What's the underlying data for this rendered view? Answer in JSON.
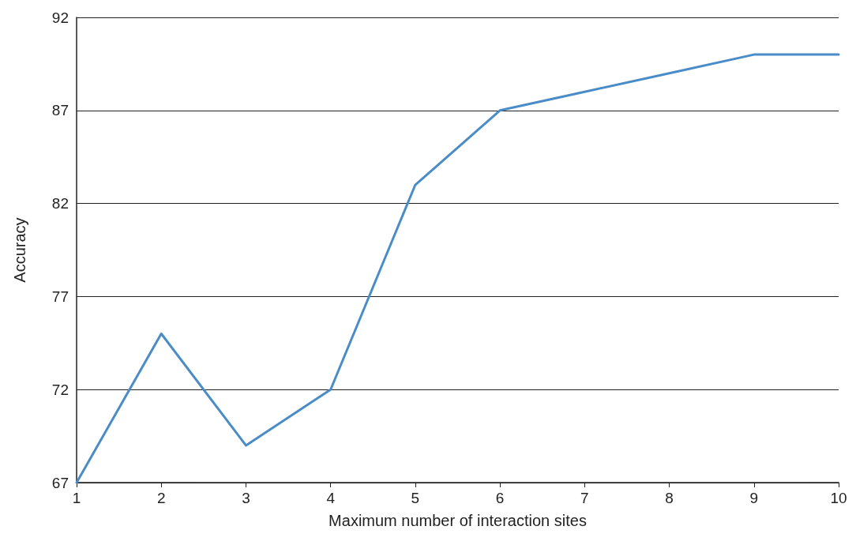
{
  "chart_data": {
    "type": "line",
    "xlabel": "Maximum number of interaction sites",
    "ylabel": "Accuracy",
    "x": [
      1,
      2,
      3,
      4,
      5,
      6,
      7,
      8,
      9,
      10
    ],
    "series": [
      {
        "color": "#4a8cc8",
        "values": [
          67,
          75,
          69,
          72,
          83,
          87,
          88,
          89,
          90,
          90
        ]
      }
    ],
    "xlim": [
      1,
      10
    ],
    "xticks": [
      1,
      2,
      3,
      4,
      5,
      6,
      7,
      8,
      9,
      10
    ],
    "ylim": [
      67,
      92
    ],
    "yticks": [
      67,
      72,
      77,
      82,
      87,
      92
    ],
    "grid": "y",
    "marker": "none",
    "line_style": "solid"
  }
}
